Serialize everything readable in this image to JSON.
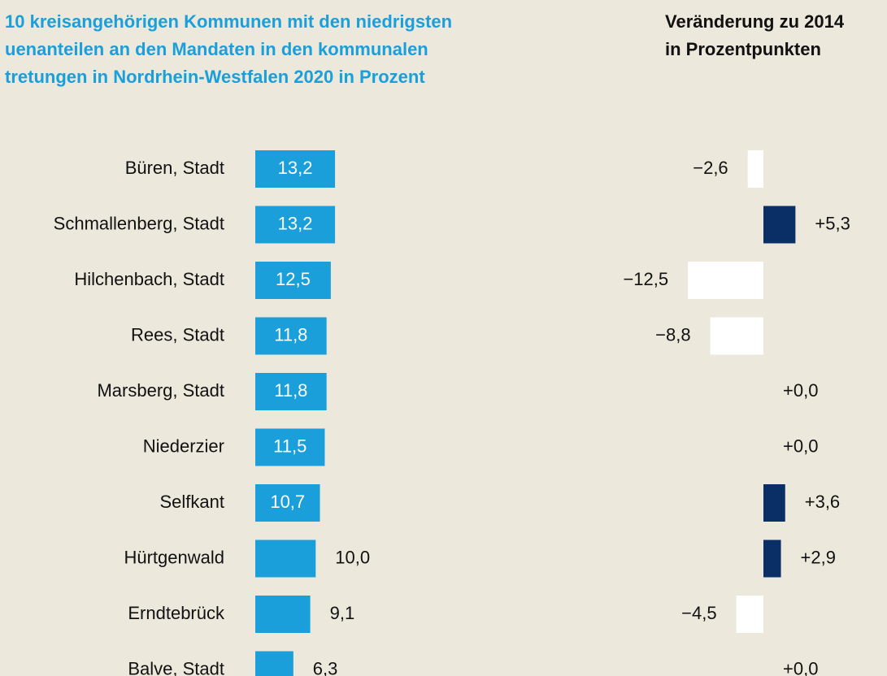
{
  "chart_data": [
    {
      "type": "hbar",
      "title": [
        "10 kreisangehörigen Kommunen mit den niedrigsten",
        "uenanteilen an den Mandaten in den kommunalen",
        "tretungen in Nordrhein-Westfalen 2020 in Prozent"
      ],
      "categories": [
        "Büren, Stadt",
        "Schmallenberg, Stadt",
        "Hilchenbach, Stadt",
        "Rees, Stadt",
        "Marsberg, Stadt",
        "Niederzier",
        "Selfkant",
        "Hürtgenwald",
        "Erndtebrück",
        "Balve, Stadt"
      ],
      "values": [
        13.2,
        13.2,
        12.5,
        11.8,
        11.8,
        11.5,
        10.7,
        10.0,
        9.1,
        6.3
      ],
      "value_labels": [
        "13,2",
        "13,2",
        "12,5",
        "11,8",
        "11,8",
        "11,5",
        "10,7",
        "10,0",
        "9,1",
        "6,3"
      ],
      "color": "#1a9fdb"
    },
    {
      "type": "diverging-hbar",
      "title": [
        "Veränderung zu 2014",
        "in Prozentpunkten"
      ],
      "values": [
        -2.6,
        5.3,
        -12.5,
        -8.8,
        0.0,
        0.0,
        3.6,
        2.9,
        -4.5,
        0.0
      ],
      "value_labels": [
        "−2,6",
        "+5,3",
        "−12,5",
        "−8,8",
        "+0,0",
        "+0,0",
        "+3,6",
        "+2,9",
        "−4,5",
        "+0,0"
      ],
      "positive_color": "#0a2f66",
      "negative_color": "#ffffff"
    }
  ]
}
